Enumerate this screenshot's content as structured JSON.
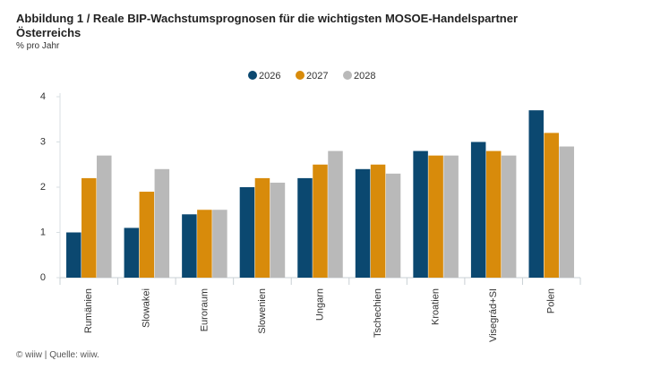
{
  "chart_data": {
    "type": "bar",
    "title": "Abbildung 1 / Reale BIP-Wachstumsprognosen für die wichtigsten MOSOE-Handelspartner Österreichs",
    "subtitle": "% pro Jahr",
    "footer": "© wiiw | Quelle: wiiw.",
    "categories": [
      "Rumänien",
      "Slowakei",
      "Euroraum",
      "Slowenien",
      "Ungarn",
      "Tschechien",
      "Kroatien",
      "Visegrád+SI",
      "Polen"
    ],
    "series": [
      {
        "name": "2026",
        "color": "#0b4870",
        "values": [
          1.0,
          1.1,
          1.4,
          2.0,
          2.2,
          2.4,
          2.8,
          3.0,
          3.7
        ]
      },
      {
        "name": "2027",
        "color": "#d88b0b",
        "values": [
          2.2,
          1.9,
          1.5,
          2.2,
          2.5,
          2.5,
          2.7,
          2.8,
          3.2
        ]
      },
      {
        "name": "2028",
        "color": "#b9b9b9",
        "values": [
          2.7,
          2.4,
          1.5,
          2.1,
          2.8,
          2.3,
          2.7,
          2.7,
          2.9
        ]
      }
    ],
    "ylim": [
      0,
      4
    ],
    "yticks": [
      0,
      1,
      2,
      3,
      4
    ],
    "legend": "top",
    "grid": false
  }
}
